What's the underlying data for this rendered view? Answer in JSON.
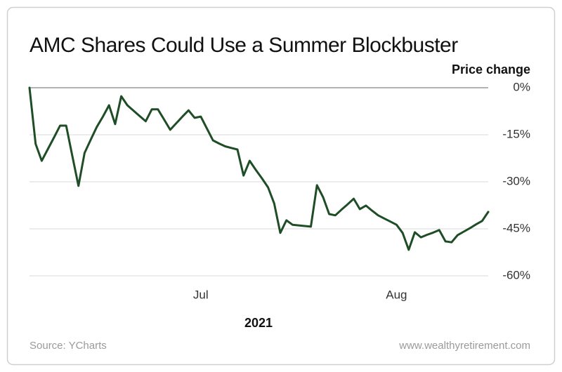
{
  "chart_data": {
    "type": "line",
    "title": "AMC Shares Could Use a Summer Blockbuster",
    "y_label": "Price change",
    "x_label": "2021",
    "source": "Source: YCharts",
    "credit": "www.wealthyretirement.com",
    "categories": [
      null,
      null,
      null,
      null,
      null,
      null,
      null,
      null,
      null,
      null,
      null,
      null,
      null,
      null,
      null,
      null,
      null,
      null,
      null,
      null,
      null,
      null,
      null,
      null,
      null,
      null,
      null,
      null,
      "Jul",
      null,
      null,
      null,
      null,
      null,
      null,
      null,
      null,
      null,
      null,
      null,
      null,
      null,
      null,
      null,
      null,
      null,
      null,
      null,
      null,
      null,
      null,
      null,
      null,
      null,
      null,
      null,
      null,
      null,
      null,
      null,
      "Aug",
      null,
      null,
      null,
      null,
      null,
      null,
      null,
      null,
      null,
      null,
      null,
      null,
      null,
      null,
      null
    ],
    "series": [
      {
        "name": "AMC",
        "color": "#1e4d26",
        "values": [
          0,
          -17.9,
          -23.3,
          -19.6,
          -15.9,
          -12.1,
          -12.1,
          -21.7,
          -31.3,
          -20.8,
          -16.6,
          -12.5,
          -9.2,
          -5.6,
          -11.6,
          -2.7,
          -5.6,
          -7.3,
          -9.0,
          -10.7,
          -6.9,
          -6.9,
          -10.1,
          -13.4,
          -11.3,
          -9.2,
          -7.2,
          -9.6,
          -9.2,
          -13.0,
          -16.8,
          -17.8,
          -18.7,
          -19.2,
          -19.7,
          -28.0,
          -23.3,
          -26.2,
          -28.9,
          -31.8,
          -36.9,
          -46.3,
          -42.3,
          -43.7,
          -43.9,
          -44.1,
          -44.3,
          -31.1,
          -34.9,
          -40.3,
          -40.7,
          -38.9,
          -37.2,
          -35.4,
          -38.7,
          -37.6,
          -39.2,
          -40.7,
          -41.7,
          -42.7,
          -43.7,
          -46.3,
          -51.7,
          -46.1,
          -47.7,
          -46.9,
          -46.2,
          -45.4,
          -49.0,
          -49.3,
          -47.0,
          -45.9,
          -44.8,
          -43.6,
          -42.5,
          -39.6
        ]
      }
    ],
    "ylim": [
      -60,
      0
    ],
    "yticks": [
      {
        "value": 0,
        "label": "0%"
      },
      {
        "value": -15,
        "label": "-15%"
      },
      {
        "value": -30,
        "label": "-30%"
      },
      {
        "value": -45,
        "label": "-45%"
      },
      {
        "value": -60,
        "label": "-60%"
      }
    ],
    "grid": true
  }
}
